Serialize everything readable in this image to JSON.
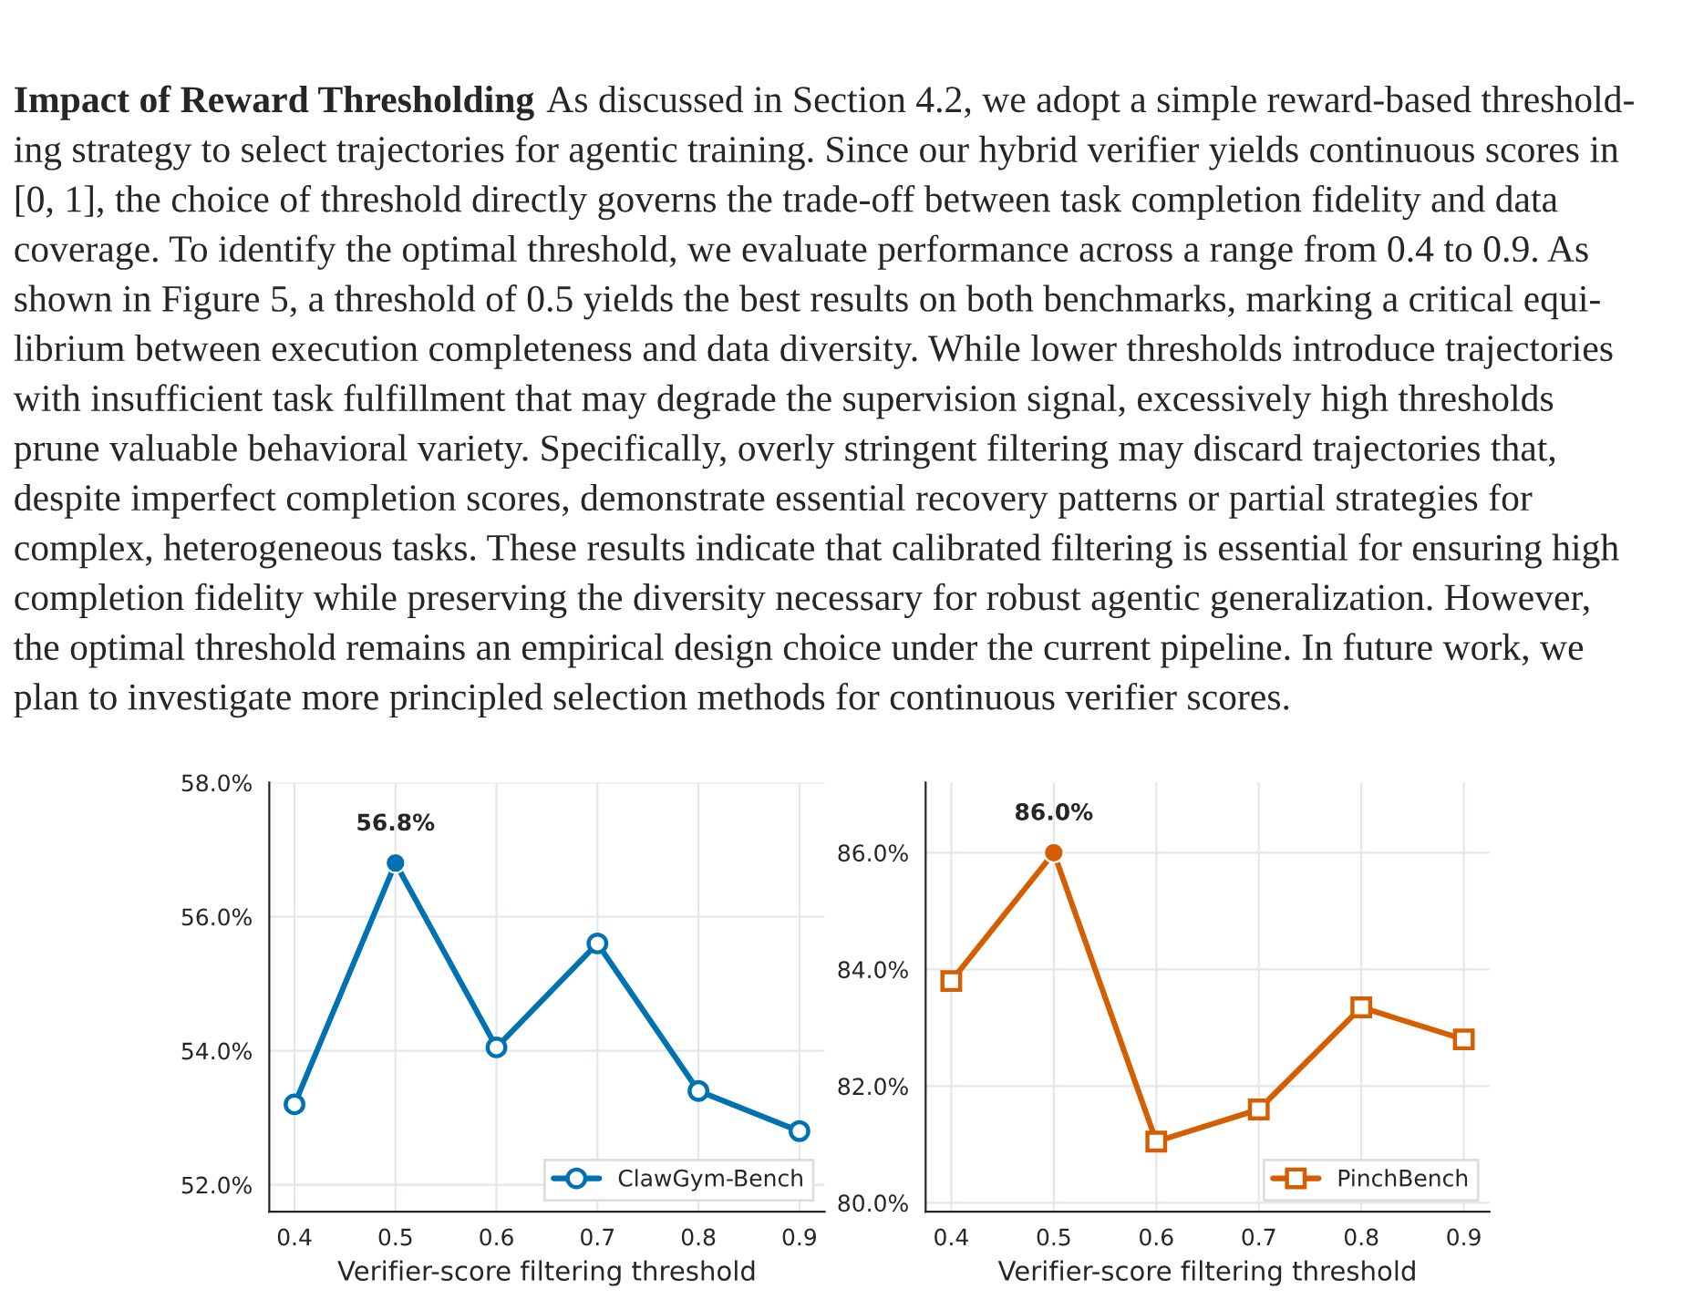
{
  "chart_data": [
    {
      "type": "other",
      "title": "Impact of Reward Thresholding",
      "annotations": [
        "As discussed in Section 4.2, we adopt a simple reward-based threshold-",
        "ing strategy to select trajectories for agentic training. Since our hybrid verifier yields continuous scores in",
        "[0, 1], the choice of threshold directly governs the trade-off between task completion fidelity and data",
        "coverage. To identify the optimal threshold, we evaluate performance across a range from 0.4 to 0.9. As",
        "shown in Figure 5, a threshold of 0.5 yields the best results on both benchmarks, marking a critical equi-",
        "librium between execution completeness and data diversity. While lower thresholds introduce trajectories",
        "with insufficient task fulfillment that may degrade the supervision signal, excessively high thresholds",
        "prune valuable behavioral variety. Specifically, overly stringent filtering may discard trajectories that,",
        "despite imperfect completion scores, demonstrate essential recovery patterns or partial strategies for",
        "complex, heterogeneous tasks. These results indicate that calibrated filtering is essential for ensuring high",
        "completion fidelity while preserving the diversity necessary for robust agentic generalization. However,",
        "the optimal threshold remains an empirical design choice under the current pipeline. In future work, we",
        "plan to investigate more principled selection methods for continuous verifier scores."
      ]
    },
    {
      "type": "line",
      "xlabel": "Verifier-score filtering threshold",
      "x": [
        0.4,
        0.5,
        0.6,
        0.7,
        0.8,
        0.9
      ],
      "series": [
        {
          "name": "ClawGym-Bench",
          "color": "#0072b2",
          "values": [
            53.2,
            56.8,
            54.05,
            55.6,
            53.4,
            52.8
          ],
          "marker": "circle"
        },
        {
          "type": "scatter",
          "color": "#0072b2",
          "x": [
            0.5
          ],
          "values": [
            56.8
          ],
          "value_labels": [
            "56.8%"
          ],
          "marker": "circle"
        }
      ],
      "xlim": [
        0.375,
        0.925
      ],
      "xticks": [
        0.4,
        0.5,
        0.6,
        0.7,
        0.8,
        0.9
      ],
      "ylim": [
        51.6,
        58
      ],
      "yticks": [
        {
          "value": 52,
          "label": "52.0%"
        },
        {
          "value": 54,
          "label": "54.0%"
        },
        {
          "value": 56,
          "label": "56.0%"
        },
        {
          "value": 58,
          "label": "58.0%"
        }
      ],
      "grid": true,
      "legend": "bottom right",
      "line_style": "solid"
    },
    {
      "type": "line",
      "xlabel": "Verifier-score filtering threshold",
      "x": [
        0.4,
        0.5,
        0.6,
        0.7,
        0.8,
        0.9
      ],
      "series": [
        {
          "name": "PinchBench",
          "color": "#d55e00",
          "values": [
            83.8,
            86.0,
            81.05,
            81.6,
            83.35,
            82.8
          ],
          "marker": "square"
        },
        {
          "type": "scatter",
          "color": "#d55e00",
          "x": [
            0.5
          ],
          "values": [
            86.0
          ],
          "value_labels": [
            "86.0%"
          ],
          "marker": "circle"
        }
      ],
      "xlim": [
        0.375,
        0.925
      ],
      "xticks": [
        0.4,
        0.5,
        0.6,
        0.7,
        0.8,
        0.9
      ],
      "ylim": [
        79.85,
        87.2
      ],
      "yticks": [
        {
          "value": 80,
          "label": "80.0%"
        },
        {
          "value": 82,
          "label": "82.0%"
        },
        {
          "value": 84,
          "label": "84.0%"
        },
        {
          "value": 86,
          "label": "86.0%"
        }
      ],
      "grid": true,
      "legend": "bottom right",
      "line_style": "solid"
    }
  ]
}
